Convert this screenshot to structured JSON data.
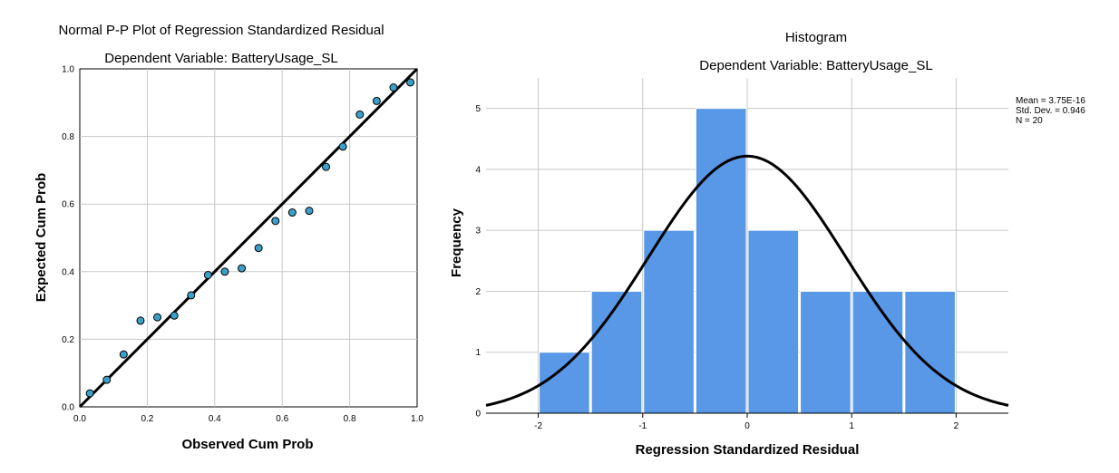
{
  "chart_data": [
    {
      "type": "scatter",
      "title": "Normal P-P Plot of Regression Standardized Residual",
      "subtitle": "Dependent Variable: BatteryUsage_SL",
      "xlabel": "Observed Cum Prob",
      "ylabel": "Expected Cum Prob",
      "xlim": [
        0,
        1
      ],
      "ylim": [
        0,
        1
      ],
      "x_ticks": [
        "0.0",
        "0.2",
        "0.4",
        "0.6",
        "0.8",
        "1.0"
      ],
      "y_ticks": [
        "0.0",
        "0.2",
        "0.4",
        "0.6",
        "0.8",
        "1.0"
      ],
      "grid": true,
      "colors": {
        "point": "#3aa0c9",
        "line": "#000000",
        "grid": "#c8c8c8"
      },
      "reference_line": [
        [
          0,
          0
        ],
        [
          1,
          1
        ]
      ],
      "points": [
        {
          "x": 0.03,
          "y": 0.04
        },
        {
          "x": 0.08,
          "y": 0.08
        },
        {
          "x": 0.13,
          "y": 0.155
        },
        {
          "x": 0.18,
          "y": 0.255
        },
        {
          "x": 0.23,
          "y": 0.265
        },
        {
          "x": 0.28,
          "y": 0.27
        },
        {
          "x": 0.33,
          "y": 0.33
        },
        {
          "x": 0.38,
          "y": 0.39
        },
        {
          "x": 0.43,
          "y": 0.4
        },
        {
          "x": 0.48,
          "y": 0.41
        },
        {
          "x": 0.53,
          "y": 0.47
        },
        {
          "x": 0.58,
          "y": 0.55
        },
        {
          "x": 0.63,
          "y": 0.575
        },
        {
          "x": 0.68,
          "y": 0.58
        },
        {
          "x": 0.73,
          "y": 0.71
        },
        {
          "x": 0.78,
          "y": 0.77
        },
        {
          "x": 0.83,
          "y": 0.865
        },
        {
          "x": 0.88,
          "y": 0.905
        },
        {
          "x": 0.93,
          "y": 0.945
        },
        {
          "x": 0.98,
          "y": 0.96
        }
      ]
    },
    {
      "type": "bar",
      "title": "Histogram",
      "subtitle": "Dependent Variable: BatteryUsage_SL",
      "xlabel": "Regression Standardized Residual",
      "ylabel": "Frequency",
      "xlim": [
        -2.5,
        2.5
      ],
      "ylim": [
        0,
        5.5
      ],
      "x_ticks": [
        "-2",
        "-1",
        "0",
        "1",
        "2"
      ],
      "y_ticks": [
        "0",
        "1",
        "2",
        "3",
        "4",
        "5"
      ],
      "grid": true,
      "colors": {
        "bar": "#5898e6",
        "bar_edge": "#ffffff",
        "curve": "#000000",
        "grid": "#c8c8c8"
      },
      "bins": [
        {
          "start": -2.0,
          "end": -1.5,
          "count": 1
        },
        {
          "start": -1.5,
          "end": -1.0,
          "count": 2
        },
        {
          "start": -1.0,
          "end": -0.5,
          "count": 3
        },
        {
          "start": -0.5,
          "end": 0.0,
          "count": 5
        },
        {
          "start": 0.0,
          "end": 0.5,
          "count": 3
        },
        {
          "start": 0.5,
          "end": 1.0,
          "count": 2
        },
        {
          "start": 1.0,
          "end": 1.5,
          "count": 2
        },
        {
          "start": 1.5,
          "end": 2.0,
          "count": 2
        }
      ],
      "normal_curve": {
        "mean": 0.0,
        "sd": 0.946,
        "n": 20,
        "bin_width": 0.5
      },
      "stats_legend": {
        "placement": "top-right",
        "lines": [
          "Mean = 3.75E-16",
          "Std. Dev. = 0.946",
          "N = 20"
        ]
      }
    }
  ]
}
